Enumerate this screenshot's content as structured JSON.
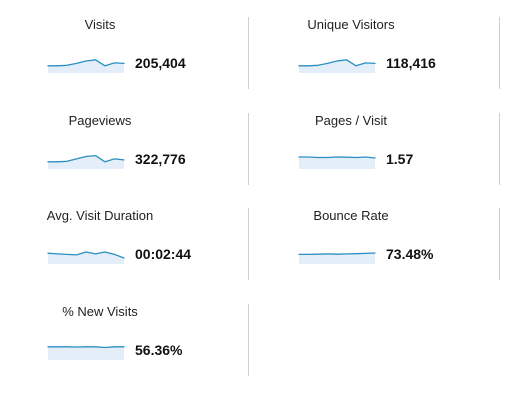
{
  "metrics": [
    {
      "label": "Visits",
      "value": "205,404",
      "trend": [
        0.3,
        0.3,
        0.32,
        0.4,
        0.5,
        0.55,
        0.3,
        0.42,
        0.4
      ]
    },
    {
      "label": "Unique Visitors",
      "value": "118,416",
      "trend": [
        0.3,
        0.3,
        0.32,
        0.4,
        0.5,
        0.55,
        0.3,
        0.42,
        0.4
      ]
    },
    {
      "label": "Pageviews",
      "value": "322,776",
      "trend": [
        0.3,
        0.3,
        0.32,
        0.42,
        0.52,
        0.56,
        0.3,
        0.42,
        0.38
      ]
    },
    {
      "label": "Pages / Visit",
      "value": "1.57",
      "trend": [
        0.5,
        0.5,
        0.48,
        0.48,
        0.5,
        0.49,
        0.48,
        0.5,
        0.46
      ]
    },
    {
      "label": "Avg. Visit Duration",
      "value": "00:02:44",
      "trend": [
        0.45,
        0.42,
        0.4,
        0.38,
        0.5,
        0.42,
        0.5,
        0.4,
        0.25
      ]
    },
    {
      "label": "Bounce Rate",
      "value": "73.48%",
      "trend": [
        0.4,
        0.4,
        0.41,
        0.42,
        0.41,
        0.42,
        0.43,
        0.44,
        0.46
      ]
    },
    {
      "label": "% New Visits",
      "value": "56.36%",
      "trend": [
        0.55,
        0.55,
        0.55,
        0.54,
        0.55,
        0.55,
        0.52,
        0.55,
        0.55
      ]
    }
  ],
  "colors": {
    "sparkline": "#2b8fc2",
    "sparkline_fill": "#e3eef8",
    "divider": "#cfcfcf"
  }
}
